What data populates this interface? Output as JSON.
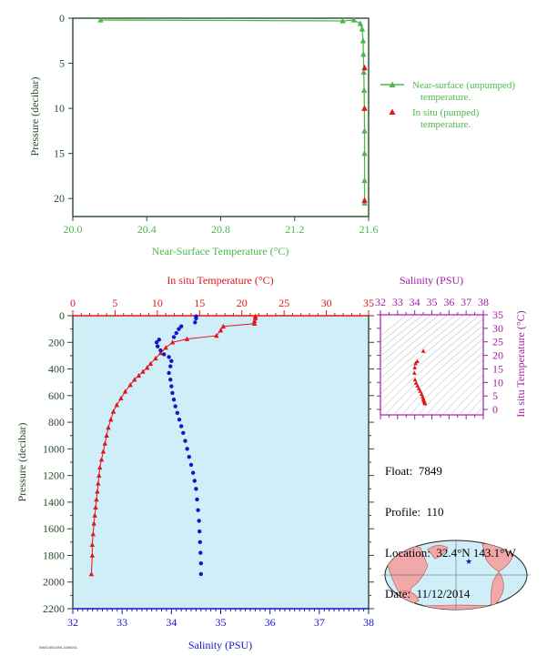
{
  "colors": {
    "near_surface": "#4cb84c",
    "in_situ_temp": "#e0161b",
    "salinity": "#1515c8",
    "salinity_label": "#a01ea0",
    "main_bg": "#cfeef8",
    "axis_dark": "#2a4a2a"
  },
  "info": {
    "float_label": "Float:",
    "float": "7849",
    "profile_label": "Profile:",
    "profile": "110",
    "location_label": "Location:",
    "location": "32.4°N 143.1°W",
    "date_label": "Date:",
    "date": "11/12/2014"
  },
  "footer_id": "NWC0001090.1090001",
  "chart_data": [
    {
      "type": "line",
      "xlabel": "Near-Surface Temperature (°C)",
      "ylabel": "Pressure (decibar)",
      "xlim": [
        20.0,
        21.6
      ],
      "ylim": [
        0,
        22
      ],
      "y_reversed": true,
      "xticks": [
        "20.0",
        "20.4",
        "20.8",
        "21.2",
        "21.6"
      ],
      "yticks": [
        "0",
        "5",
        "10",
        "15",
        "20"
      ],
      "legend_position": "right",
      "series": [
        {
          "name": "Near-surface (unpumped) temperature.",
          "marker": "triangle",
          "x": [
            20.15,
            21.46,
            21.52,
            21.555,
            21.565,
            21.57,
            21.572,
            21.574,
            21.576,
            21.577,
            21.578,
            21.578,
            21.578,
            21.578
          ],
          "y": [
            0.2,
            0.3,
            0.2,
            0.6,
            1.2,
            2.5,
            4.0,
            6.0,
            8.0,
            10.0,
            12.5,
            15.0,
            18.0,
            20.5
          ]
        },
        {
          "name": "In situ (pumped) temperature.",
          "marker": "triangle",
          "x": [
            21.578,
            21.578,
            21.578
          ],
          "y": [
            5.5,
            10.0,
            20.2
          ]
        }
      ]
    },
    {
      "type": "line",
      "ylabel": "Pressure (decibar)",
      "ylim": [
        0,
        2200
      ],
      "y_reversed": true,
      "yticks": [
        "0",
        "200",
        "400",
        "600",
        "800",
        "1000",
        "1200",
        "1400",
        "1600",
        "1800",
        "2000",
        "2200"
      ],
      "top_axis": {
        "label": "In situ Temperature (°C)",
        "lim": [
          0,
          35
        ],
        "ticks": [
          "0",
          "5",
          "10",
          "15",
          "20",
          "25",
          "30",
          "35"
        ]
      },
      "bottom_axis": {
        "label": "Salinity (PSU)",
        "lim": [
          32,
          38
        ],
        "ticks": [
          "32",
          "33",
          "34",
          "35",
          "36",
          "37",
          "38"
        ]
      },
      "series": [
        {
          "axis": "temperature",
          "marker": "triangle",
          "x": [
            21.6,
            21.6,
            21.5,
            21.5,
            17.8,
            17.5,
            17.0,
            13.5,
            11.8,
            11.0,
            10.4,
            9.8,
            9.2,
            8.8,
            8.3,
            7.8,
            7.3,
            6.8,
            6.2,
            5.7,
            5.2,
            4.8,
            4.5,
            4.2,
            4.0,
            3.8,
            3.6,
            3.4,
            3.2,
            3.1,
            3.0,
            2.9,
            2.8,
            2.7,
            2.6,
            2.5,
            2.4,
            2.3,
            2.3,
            2.2
          ],
          "y": [
            5,
            20,
            40,
            60,
            80,
            110,
            150,
            175,
            200,
            240,
            280,
            320,
            360,
            390,
            420,
            450,
            480,
            520,
            570,
            620,
            670,
            720,
            780,
            840,
            900,
            960,
            1020,
            1080,
            1140,
            1200,
            1260,
            1320,
            1380,
            1440,
            1500,
            1560,
            1640,
            1720,
            1800,
            1940
          ]
        },
        {
          "axis": "salinity",
          "marker": "circle",
          "x": [
            34.5,
            34.5,
            34.48,
            34.2,
            34.15,
            34.1,
            34.05,
            33.75,
            33.7,
            33.72,
            33.78,
            33.85,
            33.95,
            34.0,
            33.98,
            33.95,
            33.98,
            34.0,
            34.02,
            34.05,
            34.08,
            34.12,
            34.16,
            34.2,
            34.24,
            34.28,
            34.32,
            34.36,
            34.4,
            34.44,
            34.47,
            34.5,
            34.52,
            34.54,
            34.56,
            34.57,
            34.58,
            34.59,
            34.6,
            34.6
          ],
          "y": [
            5,
            20,
            50,
            80,
            100,
            130,
            160,
            180,
            200,
            230,
            260,
            290,
            310,
            340,
            380,
            430,
            480,
            530,
            580,
            630,
            680,
            730,
            780,
            830,
            880,
            940,
            1000,
            1060,
            1120,
            1180,
            1240,
            1300,
            1380,
            1460,
            1540,
            1620,
            1700,
            1780,
            1860,
            1940
          ]
        }
      ]
    },
    {
      "type": "scatter",
      "title": "Salinity (PSU)",
      "xlabel": "Salinity (PSU)",
      "ylabel": "In situ Temperature (°C)",
      "xlim": [
        32,
        38
      ],
      "ylim": [
        -2,
        35
      ],
      "xticks": [
        "32",
        "33",
        "34",
        "35",
        "36",
        "37",
        "38"
      ],
      "yticks": [
        "0",
        "5",
        "10",
        "15",
        "20",
        "25",
        "30",
        "35"
      ],
      "series": [
        {
          "marker": "triangle",
          "x": [
            34.6,
            34.59,
            34.57,
            34.55,
            34.52,
            34.5,
            34.46,
            34.4,
            34.32,
            34.24,
            34.16,
            34.08,
            34.02,
            33.98,
            34.0,
            34.05,
            34.15,
            34.5
          ],
          "y": [
            2.2,
            2.5,
            2.8,
            3.1,
            3.5,
            4.0,
            4.8,
            5.7,
            6.8,
            7.8,
            8.8,
            9.8,
            11.0,
            13.5,
            15.5,
            17.0,
            17.8,
            21.6
          ]
        }
      ]
    }
  ]
}
